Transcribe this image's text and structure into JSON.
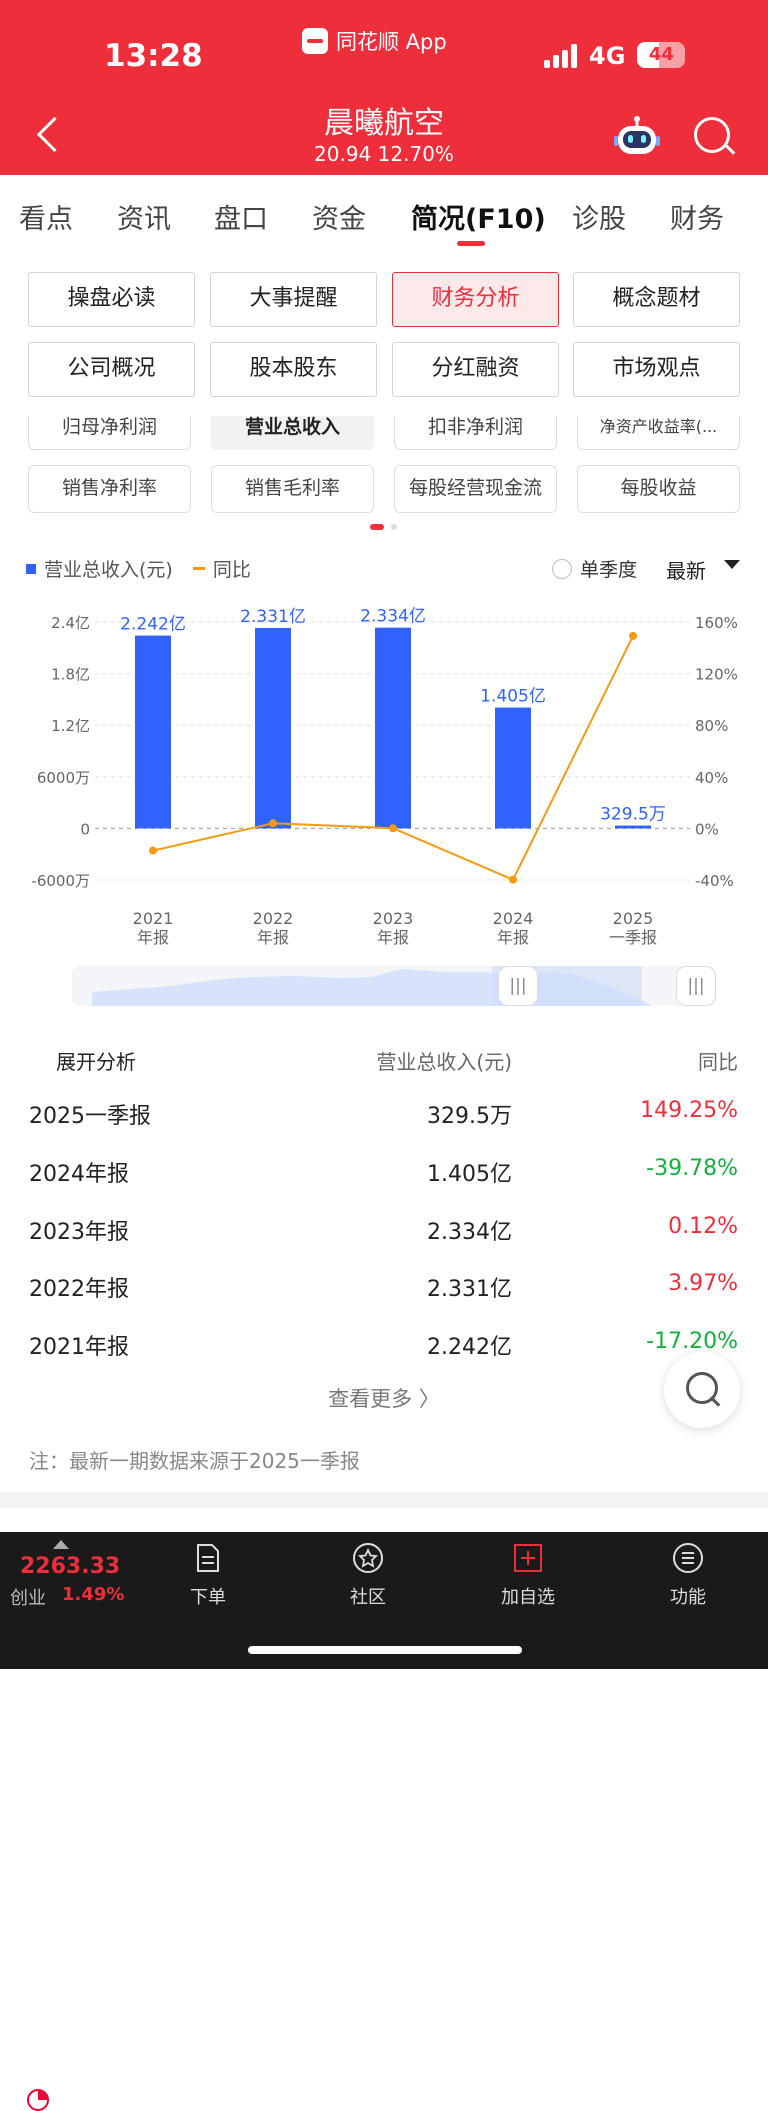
{
  "status": {
    "time": "13:28",
    "app": "同花顺 App",
    "network": "4G",
    "battery": "44"
  },
  "header": {
    "title": "晨曦航空",
    "price": "20.94",
    "change": "12.70%"
  },
  "tabs": [
    "看点",
    "资讯",
    "盘口",
    "资金",
    "简况(F10)",
    "诊股",
    "财务"
  ],
  "active_tab": "简况(F10)",
  "grid_buttons": [
    "操盘必读",
    "大事提醒",
    "财务分析",
    "概念题材",
    "公司概况",
    "股本股东",
    "分红融资",
    "市场观点"
  ],
  "active_grid": "财务分析",
  "metric_partial": [
    "归母净利润",
    "营业总收入",
    "扣非净利润",
    "净资产收益率(..."
  ],
  "metric_buttons": [
    "销售净利率",
    "销售毛利率",
    "每股经营现金流",
    "每股收益"
  ],
  "legend": {
    "bar": "营业总收入(元)",
    "line": "同比"
  },
  "quarter_toggle": "单季度",
  "period_select": "最新",
  "chart_data": {
    "type": "bar",
    "categories": [
      "2021年报",
      "2022年报",
      "2023年报",
      "2024年报",
      "2025一季报"
    ],
    "x_tick_labels": [
      [
        "2021",
        "年报"
      ],
      [
        "2022",
        "年报"
      ],
      [
        "2023",
        "年报"
      ],
      [
        "2024",
        "年报"
      ],
      [
        "2025",
        "一季报"
      ]
    ],
    "series": [
      {
        "name": "营业总收入(元)",
        "type": "bar",
        "values": [
          224200000,
          233100000,
          233400000,
          140500000,
          3295000
        ],
        "labels": [
          "2.242亿",
          "2.331亿",
          "2.334亿",
          "1.405亿",
          "329.5万"
        ],
        "color": "#2f62ff"
      },
      {
        "name": "同比",
        "type": "line",
        "values": [
          -17.2,
          3.97,
          0.12,
          -39.78,
          149.25
        ],
        "color": "#f59a12"
      }
    ],
    "y_left_ticks": [
      "2.4亿",
      "1.8亿",
      "1.2亿",
      "6000万",
      "0",
      "-6000万"
    ],
    "y_left_range": [
      -60000000,
      240000000
    ],
    "y_right_ticks": [
      "160%",
      "120%",
      "80%",
      "40%",
      "0%",
      "-40%"
    ],
    "y_right_range": [
      -40,
      160
    ]
  },
  "table": {
    "header": [
      "展开分析",
      "营业总收入(元)",
      "同比"
    ],
    "rows": [
      {
        "period": "2025一季报",
        "value": "329.5万",
        "yoy": "149.25%",
        "trend": "up"
      },
      {
        "period": "2024年报",
        "value": "1.405亿",
        "yoy": "-39.78%",
        "trend": "down"
      },
      {
        "period": "2023年报",
        "value": "2.334亿",
        "yoy": "0.12%",
        "trend": "up"
      },
      {
        "period": "2022年报",
        "value": "2.331亿",
        "yoy": "3.97%",
        "trend": "up"
      },
      {
        "period": "2021年报",
        "value": "2.242亿",
        "yoy": "-17.20%",
        "trend": "down"
      }
    ]
  },
  "more_label": "查看更多 〉",
  "note": "注：最新一期数据来源于2025一季报",
  "bottom": {
    "index_value": "2263.33",
    "index_name": "创业",
    "index_change": "1.49%",
    "nav": [
      "下单",
      "社区",
      "加自选",
      "功能"
    ]
  },
  "colors": {
    "brand": "#ee2e3b",
    "bar": "#2f62ff",
    "line": "#f59a12",
    "up": "#ee2e3b",
    "down": "#13b03c"
  }
}
